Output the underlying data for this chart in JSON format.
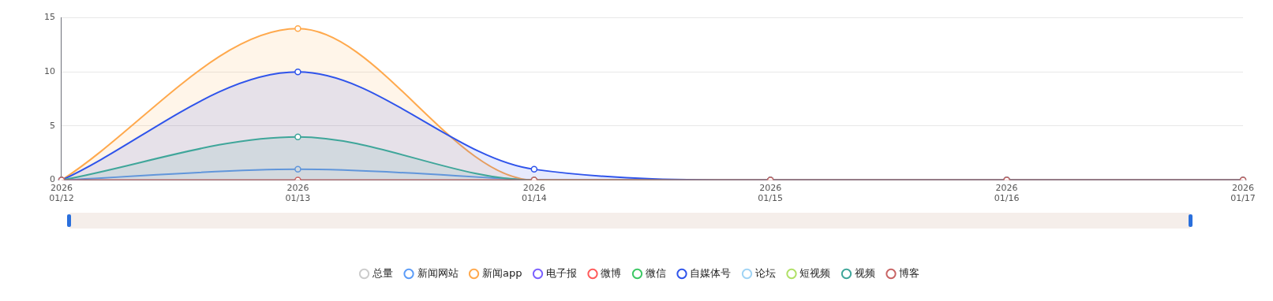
{
  "chart_data": {
    "type": "line",
    "categories": [
      "2026\n01/12",
      "2026\n01/13",
      "2026\n01/14",
      "2026\n01/15",
      "2026\n01/16",
      "2026\n01/17"
    ],
    "series": [
      {
        "name": "总量",
        "color": "#cccccc",
        "values": [
          null,
          null,
          null,
          null,
          null,
          null
        ]
      },
      {
        "name": "新闻网站",
        "color": "#5b9cf8",
        "values": [
          0,
          1,
          0,
          null,
          null,
          null
        ]
      },
      {
        "name": "新闻app",
        "color": "#ffa94d",
        "type": "area",
        "values": [
          0,
          14,
          0,
          0,
          0,
          0
        ]
      },
      {
        "name": "电子报",
        "color": "#7b61ff",
        "values": [
          null,
          null,
          null,
          null,
          null,
          null
        ]
      },
      {
        "name": "微博",
        "color": "#ff5a5a",
        "values": [
          null,
          null,
          null,
          null,
          null,
          null
        ]
      },
      {
        "name": "微信",
        "color": "#3cc864",
        "values": [
          null,
          null,
          null,
          null,
          null,
          null
        ]
      },
      {
        "name": "自媒体号",
        "color": "#2f54eb",
        "type": "area",
        "values": [
          0,
          10,
          1,
          0,
          0,
          0
        ]
      },
      {
        "name": "论坛",
        "color": "#a0d4f5",
        "values": [
          null,
          null,
          null,
          null,
          null,
          null
        ]
      },
      {
        "name": "短视频",
        "color": "#b0e066",
        "values": [
          null,
          null,
          null,
          null,
          null,
          null
        ]
      },
      {
        "name": "视频",
        "color": "#3fa69a",
        "type": "area",
        "values": [
          0,
          4,
          0,
          0,
          0,
          0
        ]
      },
      {
        "name": "博客",
        "color": "#c86464",
        "values": [
          0,
          0,
          0,
          0,
          0,
          0
        ]
      }
    ],
    "ylim": [
      0,
      15
    ],
    "yticks": [
      0,
      5,
      10,
      15
    ],
    "grid": "y",
    "legend": "bottom",
    "marker": "circle",
    "line_style": "solid"
  }
}
